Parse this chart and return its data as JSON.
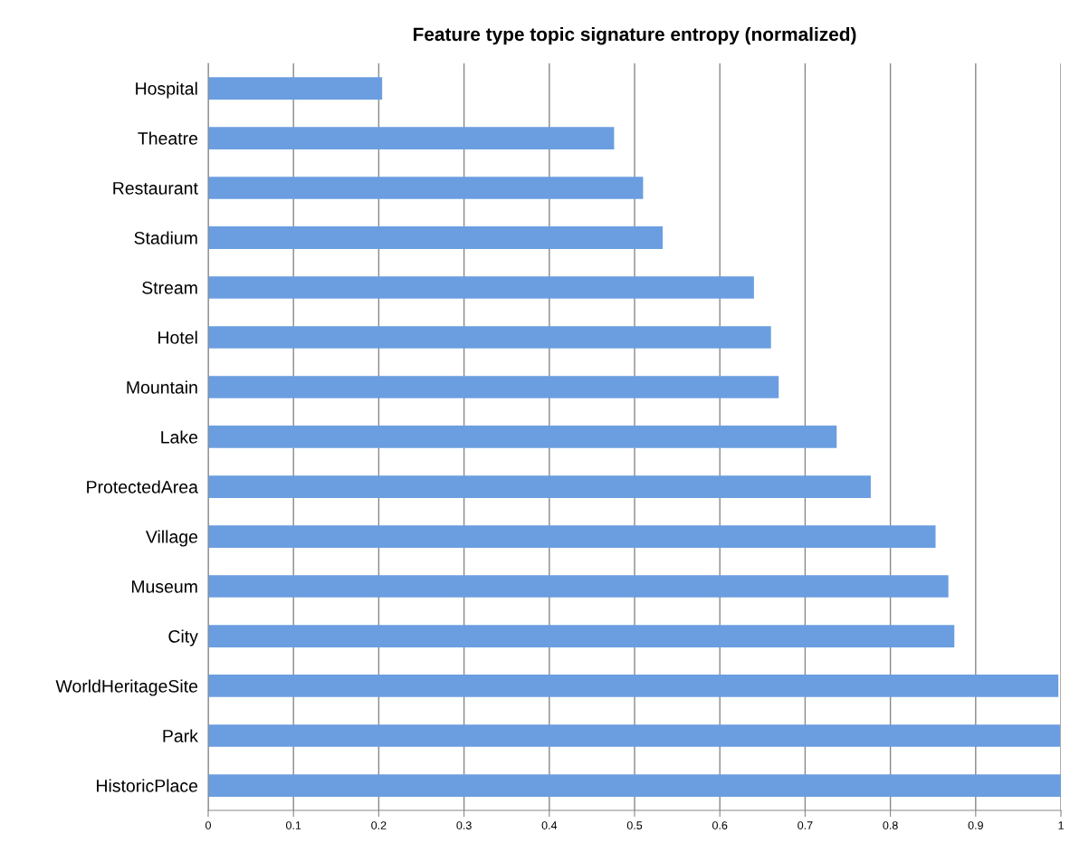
{
  "chart_data": {
    "type": "bar",
    "orientation": "horizontal",
    "title": "Feature type topic signature entropy (normalized)",
    "categories": [
      "Hospital",
      "Theatre",
      "Restaurant",
      "Stadium",
      "Stream",
      "Hotel",
      "Mountain",
      "Lake",
      "ProtectedArea",
      "Village",
      "Museum",
      "City",
      "WorldHeritageSite",
      "Park",
      "HistoricPlace"
    ],
    "values": [
      0.204,
      0.476,
      0.51,
      0.533,
      0.64,
      0.66,
      0.669,
      0.737,
      0.777,
      0.853,
      0.868,
      0.875,
      0.997,
      0.999,
      1.0
    ],
    "color": "#6a9ee0",
    "xlim": [
      0,
      1
    ],
    "xticks": [
      0,
      0.1,
      0.2,
      0.3,
      0.4,
      0.5,
      0.6,
      0.7,
      0.8,
      0.9,
      1
    ],
    "grid": "x"
  }
}
